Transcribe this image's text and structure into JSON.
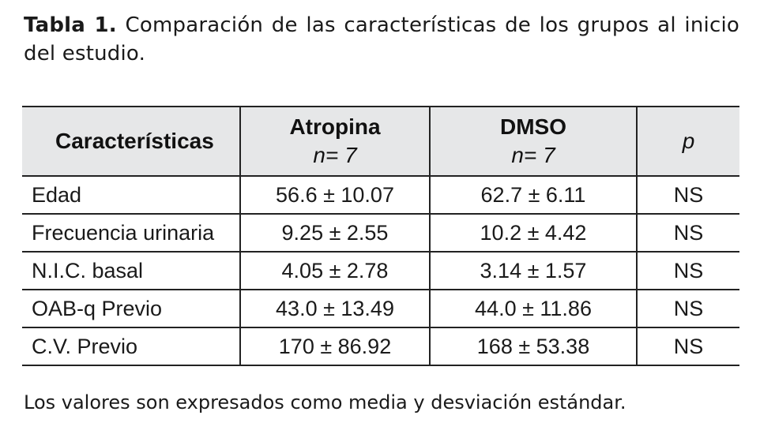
{
  "caption": {
    "label": "Tabla 1.",
    "text": " Comparación de las características de los grupos al inicio del estudio."
  },
  "table": {
    "headers": {
      "characteristic": "Características",
      "group1_name": "Atropina",
      "group1_n": "n= 7",
      "group2_name": "DMSO",
      "group2_n": "n= 7",
      "p": "p"
    },
    "rows": [
      {
        "label": "Edad",
        "atropina": "56.6 ± 10.07",
        "dmso": "62.7 ± 6.11",
        "p": "NS"
      },
      {
        "label": "Frecuencia urinaria",
        "atropina": "9.25 ± 2.55",
        "dmso": "10.2 ± 4.42",
        "p": "NS"
      },
      {
        "label": "N.I.C. basal",
        "atropina": "4.05 ± 2.78",
        "dmso": "3.14 ± 1.57",
        "p": "NS"
      },
      {
        "label": "OAB-q Previo",
        "atropina": "43.0 ± 13.49",
        "dmso": "44.0 ± 11.86",
        "p": "NS"
      },
      {
        "label": "C.V. Previo",
        "atropina": "170 ± 86.92",
        "dmso": "168 ± 53.38",
        "p": "NS"
      }
    ]
  },
  "note": "Los valores son expresados como media y desviación estándar."
}
